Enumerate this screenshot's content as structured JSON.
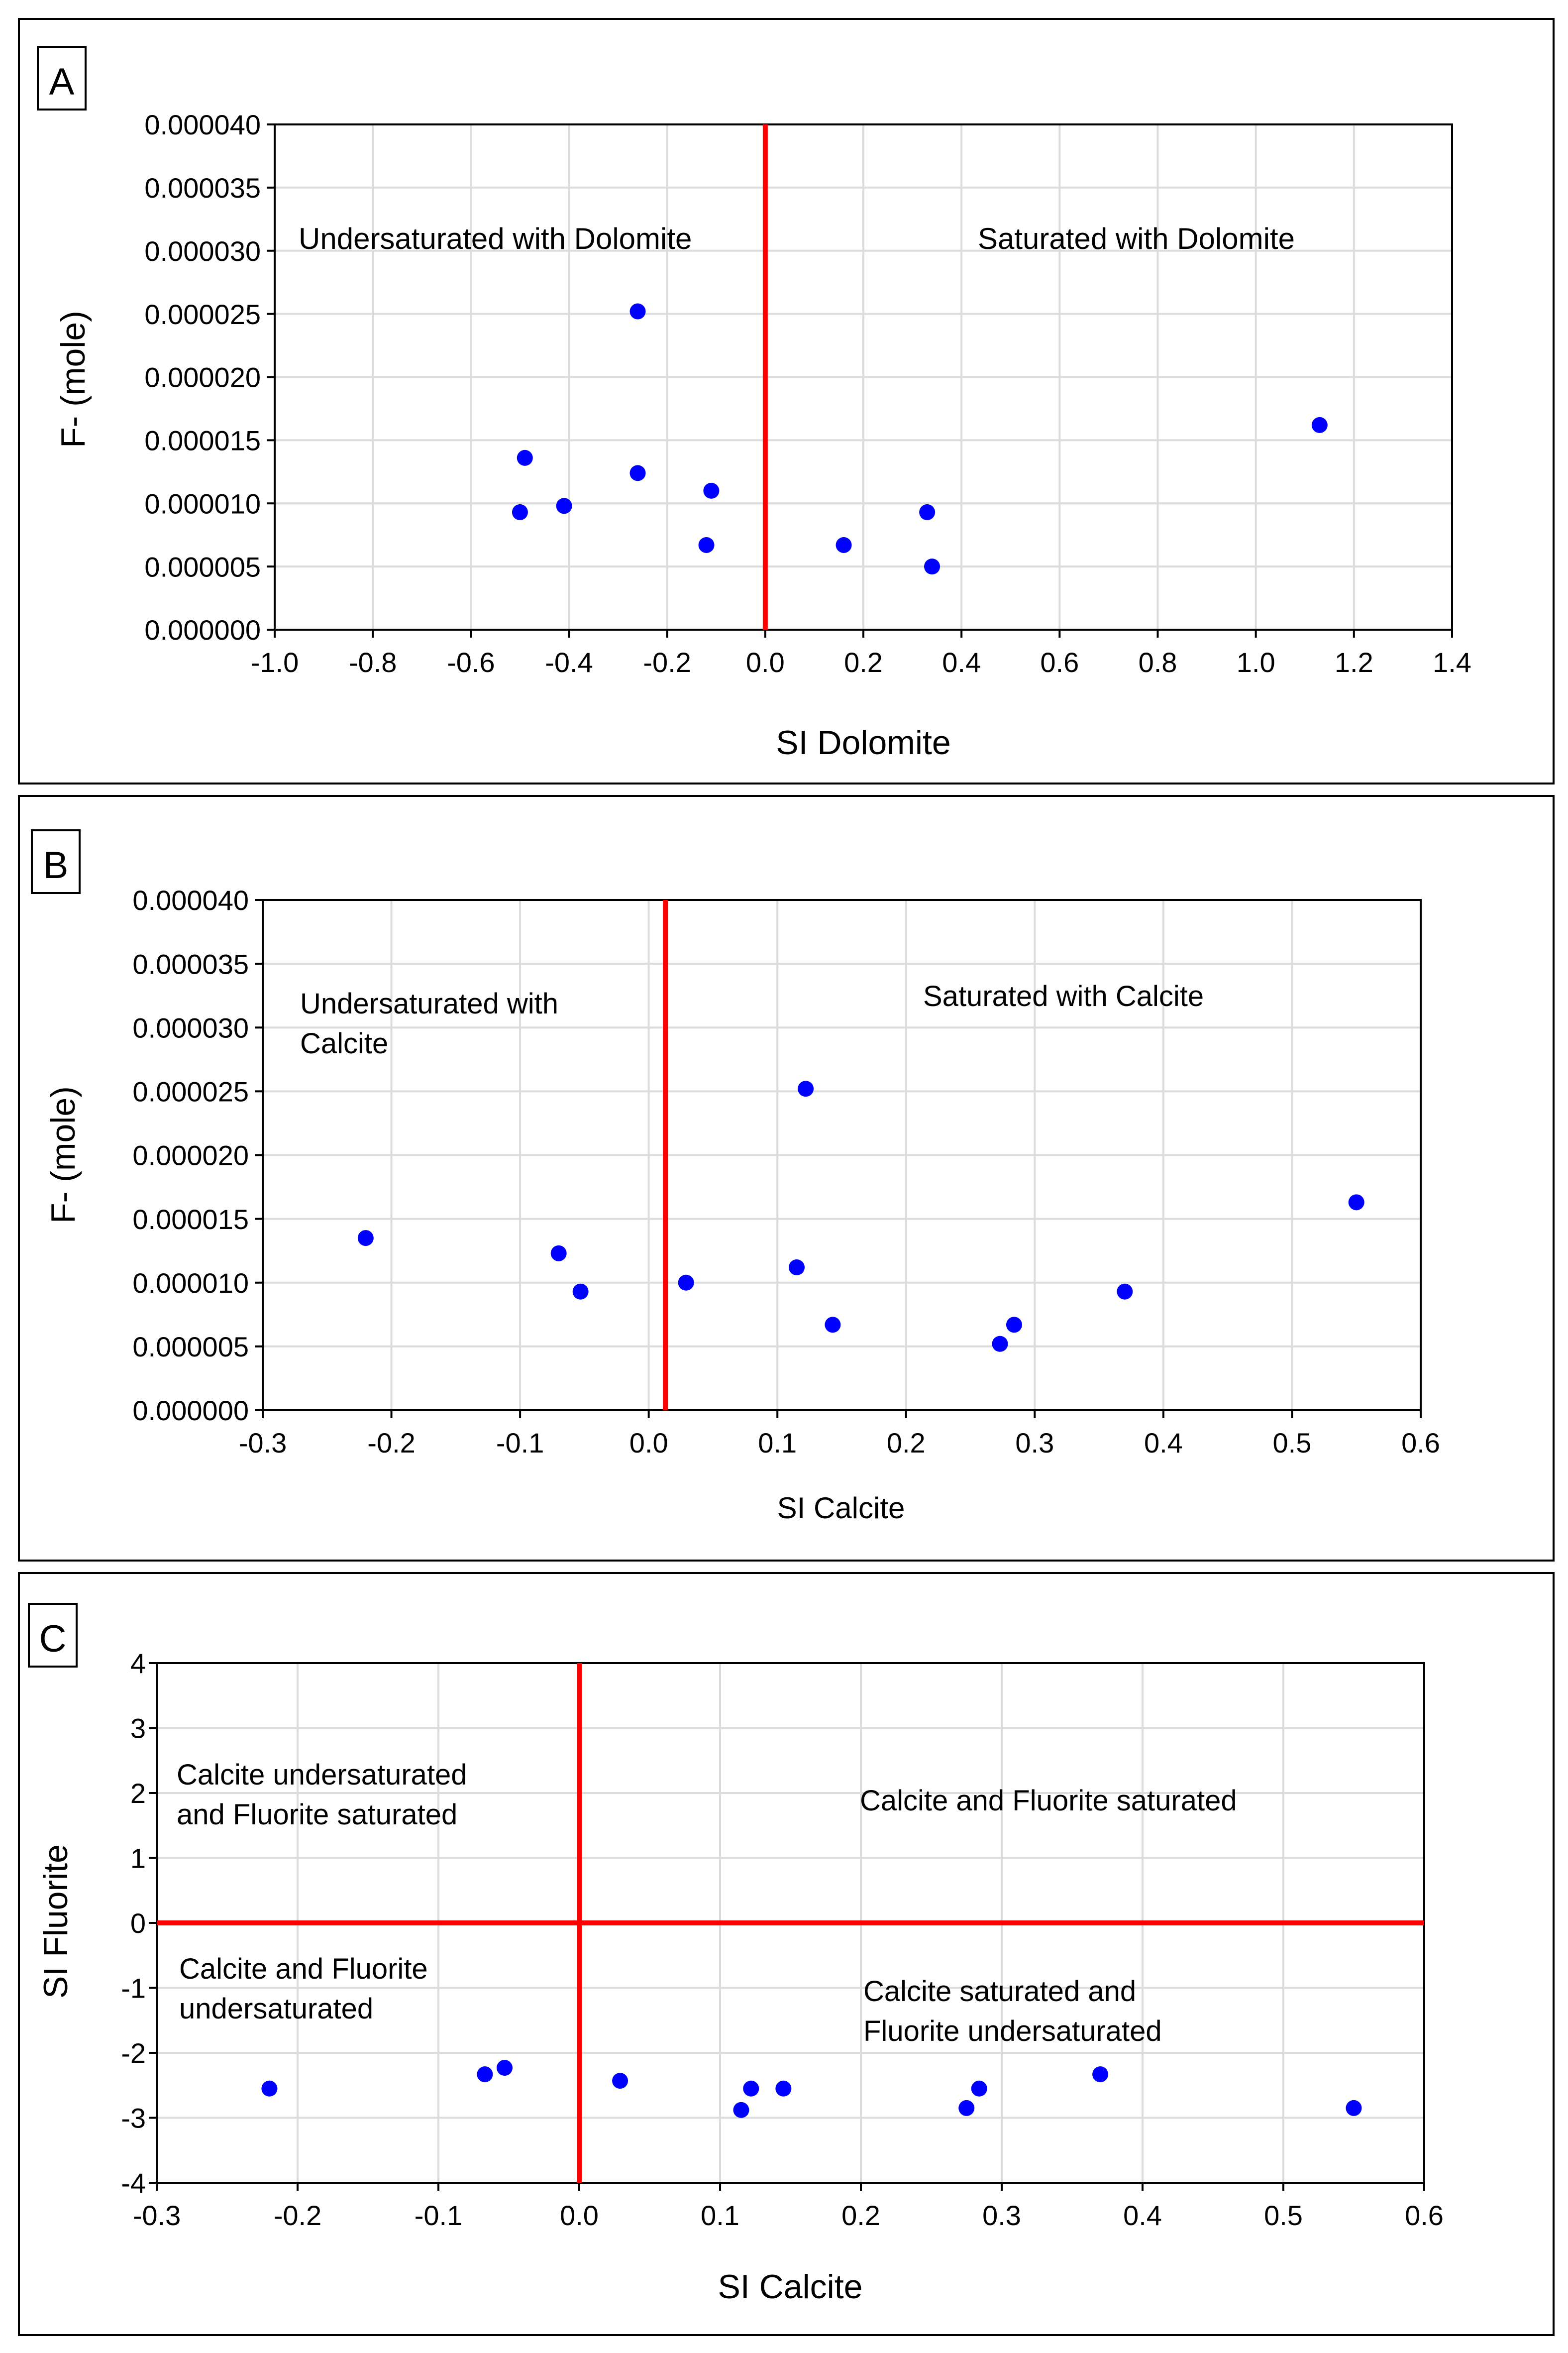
{
  "colors": {
    "point": "#0000ff",
    "divider": "#ff0000",
    "grid": "#dcdcdc",
    "frame": "#000000"
  },
  "panels": [
    {
      "label": "A",
      "xlabel": "SI Dolomite",
      "ylabel": "F- (mole)",
      "xticks": [
        "-1.0",
        "-0.8",
        "-0.6",
        "-0.4",
        "-0.2",
        "0.0",
        "0.2",
        "0.4",
        "0.6",
        "0.8",
        "1.0",
        "1.2",
        "1.4"
      ],
      "yticks": [
        "0.000000",
        "0.000005",
        "0.000010",
        "0.000015",
        "0.000020",
        "0.000025",
        "0.000030",
        "0.000035",
        "0.000040"
      ],
      "annotations": [
        {
          "lines": [
            "Undersaturated with Dolomite"
          ]
        },
        {
          "lines": [
            "Saturated with Dolomite"
          ]
        }
      ]
    },
    {
      "label": "B",
      "xlabel": "SI Calcite",
      "ylabel": "F- (mole)",
      "xticks": [
        "-0.3",
        "-0.2",
        "-0.1",
        "0.0",
        "0.1",
        "0.2",
        "0.3",
        "0.4",
        "0.5",
        "0.6"
      ],
      "yticks": [
        "0.000000",
        "0.000005",
        "0.000010",
        "0.000015",
        "0.000020",
        "0.000025",
        "0.000030",
        "0.000035",
        "0.000040"
      ],
      "annotations": [
        {
          "lines": [
            "Undersaturated with",
            "Calcite"
          ]
        },
        {
          "lines": [
            "Saturated with Calcite"
          ]
        }
      ]
    },
    {
      "label": "C",
      "xlabel": "SI Calcite",
      "ylabel": "SI Fluorite",
      "xticks": [
        "-0.3",
        "-0.2",
        "-0.1",
        "0.0",
        "0.1",
        "0.2",
        "0.3",
        "0.4",
        "0.5",
        "0.6"
      ],
      "yticks": [
        "-4",
        "-3",
        "-2",
        "-1",
        "0",
        "1",
        "2",
        "3",
        "4"
      ],
      "annotations": [
        {
          "lines": [
            "Calcite undersaturated",
            "and Fluorite saturated"
          ]
        },
        {
          "lines": [
            "Calcite and Fluorite saturated"
          ]
        },
        {
          "lines": [
            "Calcite and Fluorite",
            "undersaturated"
          ]
        },
        {
          "lines": [
            "Calcite saturated and",
            "Fluorite undersaturated"
          ]
        }
      ]
    }
  ],
  "chart_data": [
    {
      "type": "scatter",
      "xlim": [
        -1.0,
        1.4
      ],
      "ylim": [
        0,
        4e-05
      ],
      "grid": true,
      "vertical_line_x": 0.0,
      "points": [
        {
          "x": -0.26,
          "y": 2.52e-05
        },
        {
          "x": -0.49,
          "y": 1.36e-05
        },
        {
          "x": -0.26,
          "y": 1.24e-05
        },
        {
          "x": -0.11,
          "y": 1.1e-05
        },
        {
          "x": -0.41,
          "y": 9.8e-06
        },
        {
          "x": -0.5,
          "y": 9.3e-06
        },
        {
          "x": -0.12,
          "y": 6.7e-06
        },
        {
          "x": 0.16,
          "y": 6.7e-06
        },
        {
          "x": 0.33,
          "y": 9.3e-06
        },
        {
          "x": 0.34,
          "y": 5e-06
        },
        {
          "x": 1.13,
          "y": 1.62e-05
        }
      ]
    },
    {
      "type": "scatter",
      "xlim": [
        -0.3,
        0.6
      ],
      "ylim": [
        0,
        4e-05
      ],
      "grid": true,
      "vertical_line_x": 0.013,
      "points": [
        {
          "x": -0.22,
          "y": 1.35e-05
        },
        {
          "x": -0.07,
          "y": 1.23e-05
        },
        {
          "x": -0.053,
          "y": 9.3e-06
        },
        {
          "x": 0.029,
          "y": 1e-05
        },
        {
          "x": 0.115,
          "y": 1.12e-05
        },
        {
          "x": 0.122,
          "y": 2.52e-05
        },
        {
          "x": 0.143,
          "y": 6.7e-06
        },
        {
          "x": 0.273,
          "y": 5.2e-06
        },
        {
          "x": 0.284,
          "y": 6.7e-06
        },
        {
          "x": 0.37,
          "y": 9.3e-06
        },
        {
          "x": 0.55,
          "y": 1.63e-05
        }
      ]
    },
    {
      "type": "scatter",
      "xlim": [
        -0.3,
        0.6
      ],
      "ylim": [
        -4,
        4
      ],
      "grid": true,
      "vertical_line_x": 0.0,
      "horizontal_line_y": 0.0,
      "points": [
        {
          "x": -0.22,
          "y": -2.55
        },
        {
          "x": -0.067,
          "y": -2.33
        },
        {
          "x": -0.053,
          "y": -2.23
        },
        {
          "x": 0.029,
          "y": -2.43
        },
        {
          "x": 0.115,
          "y": -2.88
        },
        {
          "x": 0.122,
          "y": -2.55
        },
        {
          "x": 0.145,
          "y": -2.55
        },
        {
          "x": 0.275,
          "y": -2.85
        },
        {
          "x": 0.284,
          "y": -2.55
        },
        {
          "x": 0.37,
          "y": -2.33
        },
        {
          "x": 0.55,
          "y": -2.85
        }
      ]
    }
  ]
}
